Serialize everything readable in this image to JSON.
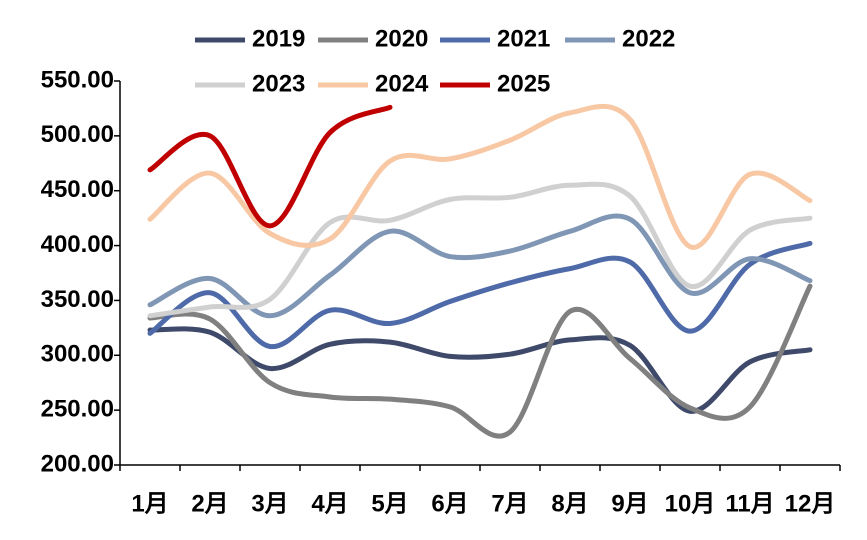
{
  "chart_data": {
    "type": "line",
    "categories": [
      "1月",
      "2月",
      "3月",
      "4月",
      "5月",
      "6月",
      "7月",
      "8月",
      "9月",
      "10月",
      "11月",
      "12月"
    ],
    "series": [
      {
        "name": "2019",
        "color": "#3f4a6b",
        "values": [
          323,
          321,
          288,
          310,
          312,
          299,
          301,
          314,
          309,
          249,
          294,
          305
        ]
      },
      {
        "name": "2020",
        "color": "#808080",
        "values": [
          334,
          333,
          275,
          262,
          260,
          253,
          230,
          340,
          297,
          252,
          253,
          363
        ]
      },
      {
        "name": "2021",
        "color": "#4f6aa8",
        "values": [
          320,
          357,
          308,
          341,
          329,
          349,
          366,
          379,
          385,
          322,
          383,
          402
        ]
      },
      {
        "name": "2022",
        "color": "#8096b5",
        "values": [
          346,
          370,
          336,
          373,
          413,
          390,
          395,
          413,
          424,
          357,
          388,
          368
        ]
      },
      {
        "name": "2023",
        "color": "#d0d0d0",
        "values": [
          336,
          344,
          351,
          421,
          423,
          442,
          444,
          455,
          445,
          363,
          414,
          425
        ]
      },
      {
        "name": "2024",
        "color": "#f8c8a4",
        "values": [
          424,
          466,
          411,
          406,
          477,
          479,
          496,
          521,
          515,
          399,
          465,
          441
        ]
      },
      {
        "name": "2025",
        "color": "#c00000",
        "values": [
          469,
          500,
          418,
          503,
          526,
          null,
          null,
          null,
          null,
          null,
          null,
          null
        ]
      }
    ],
    "ylim": [
      200,
      550
    ],
    "yticks": [
      {
        "value": 200,
        "label": "200.00"
      },
      {
        "value": 250,
        "label": "250.00"
      },
      {
        "value": 300,
        "label": "300.00"
      },
      {
        "value": 350,
        "label": "350.00"
      },
      {
        "value": 400,
        "label": "400.00"
      },
      {
        "value": 450,
        "label": "450.00"
      },
      {
        "value": 500,
        "label": "500.00"
      },
      {
        "value": 550,
        "label": "550.00"
      }
    ],
    "smooth": true
  }
}
